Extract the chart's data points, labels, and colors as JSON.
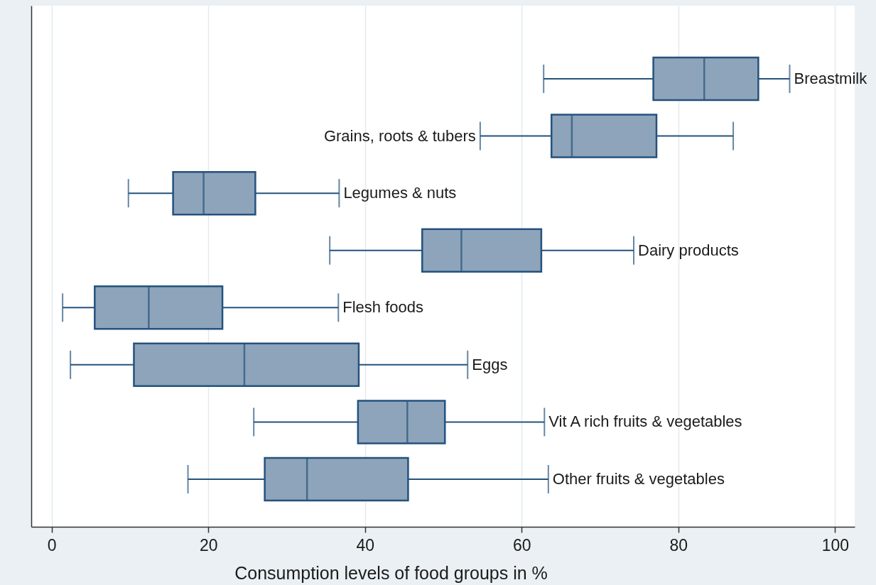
{
  "chart_data": {
    "type": "box",
    "orientation": "horizontal",
    "categories": [
      "Breastmilk",
      "Grains, roots & tubers",
      "Legumes & nuts",
      "Dairy products",
      "Flesh foods",
      "Eggs",
      "Vit A rich fruits & vegetables",
      "Other fruits & vegetables"
    ],
    "boxes": [
      {
        "low": 62.8,
        "q1": 76.8,
        "median": 83.3,
        "q3": 90.2,
        "high": 94.2
      },
      {
        "low": 54.7,
        "q1": 63.8,
        "median": 66.4,
        "q3": 77.2,
        "high": 87.0
      },
      {
        "low": 9.8,
        "q1": 15.5,
        "median": 19.4,
        "q3": 26.0,
        "high": 36.7
      },
      {
        "low": 35.5,
        "q1": 47.3,
        "median": 52.3,
        "q3": 62.5,
        "high": 74.3
      },
      {
        "low": 1.4,
        "q1": 5.5,
        "median": 12.4,
        "q3": 21.8,
        "high": 36.6
      },
      {
        "low": 2.4,
        "q1": 10.5,
        "median": 24.6,
        "q3": 39.2,
        "high": 53.1
      },
      {
        "low": 25.8,
        "q1": 39.1,
        "median": 45.4,
        "q3": 50.2,
        "high": 62.9
      },
      {
        "low": 17.4,
        "q1": 27.2,
        "median": 32.6,
        "q3": 45.5,
        "high": 63.4
      }
    ],
    "color": "#8ea4ba",
    "xlabel": "Consumption levels of food groups in %",
    "xlim": [
      -2.6,
      102.5
    ],
    "xticks": [
      0,
      20,
      40,
      60,
      80,
      100
    ],
    "grid": "x",
    "tick_labels": "x"
  }
}
